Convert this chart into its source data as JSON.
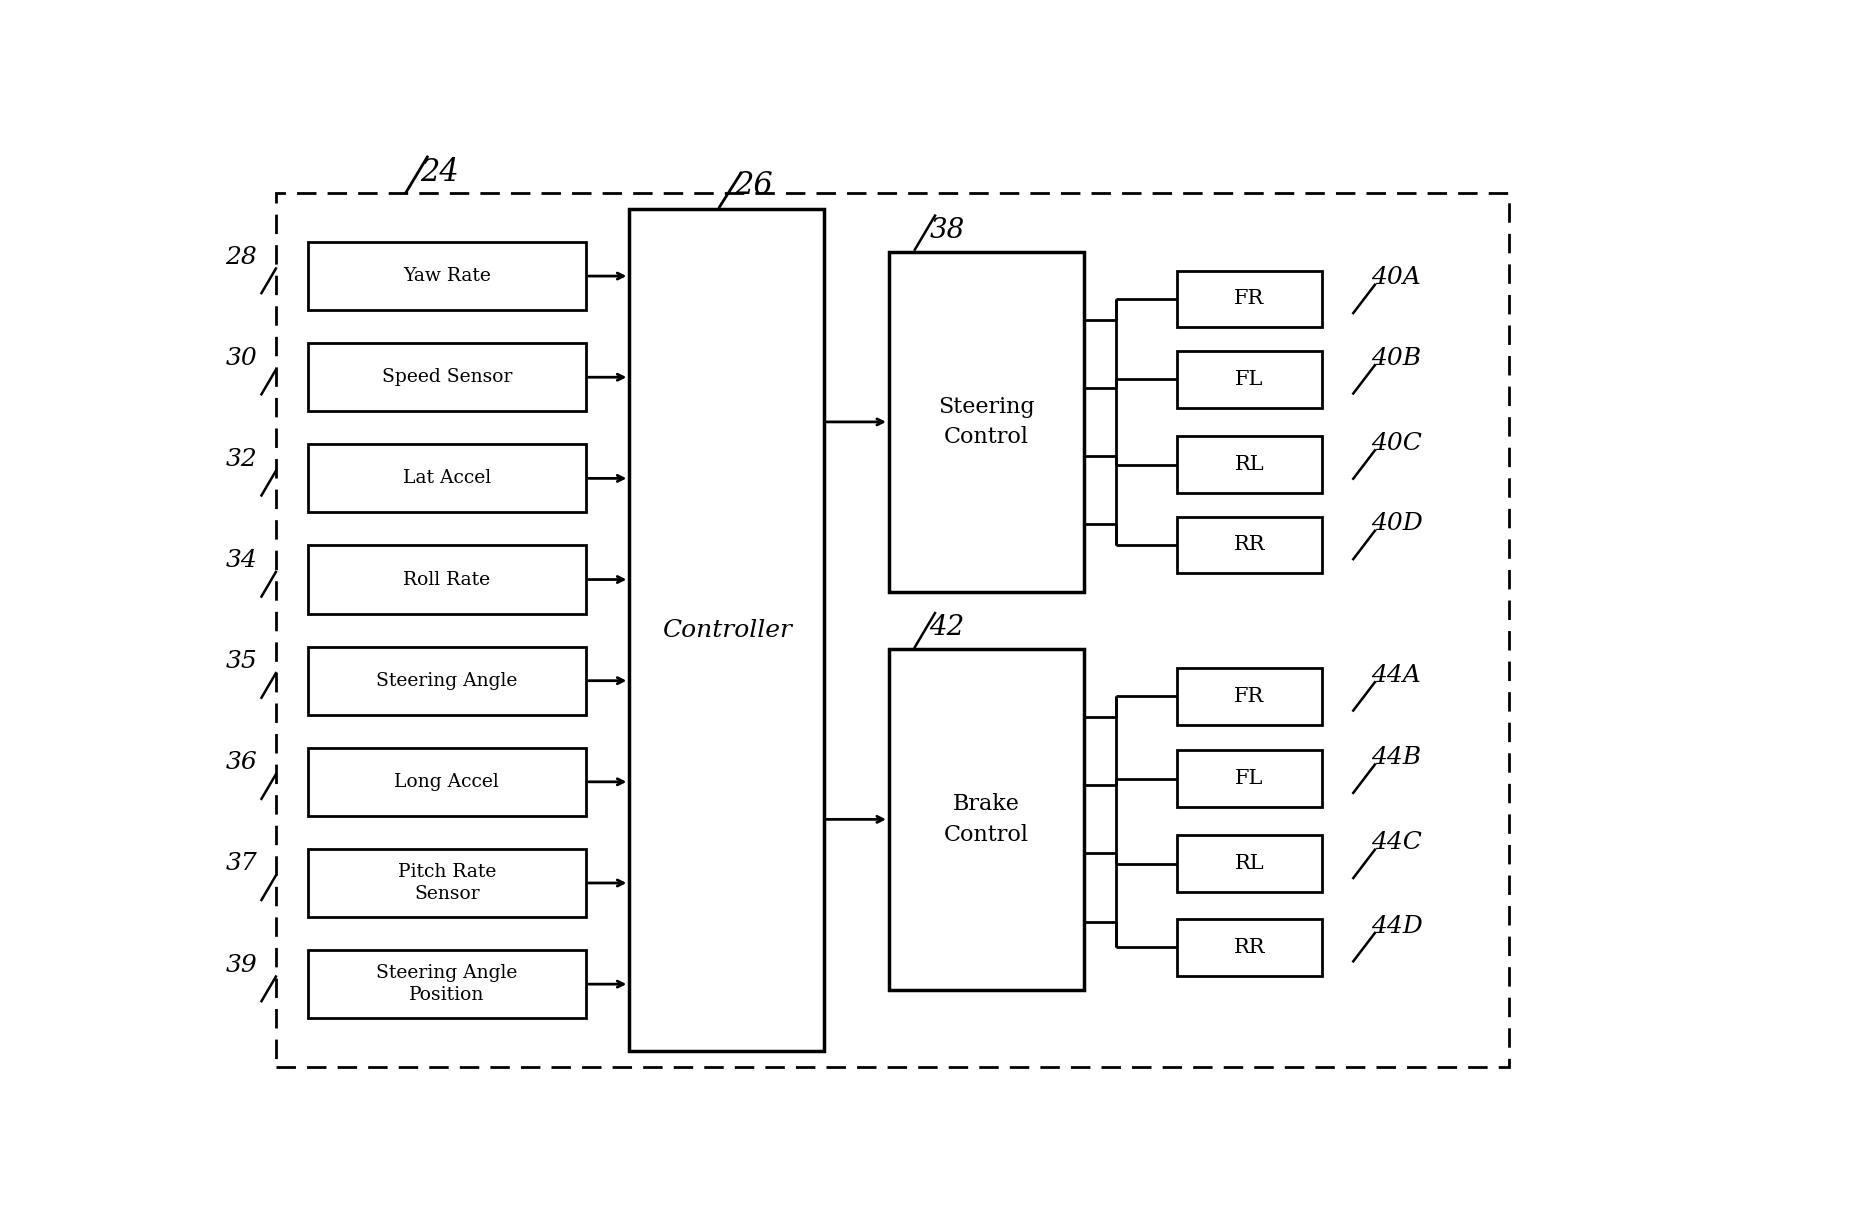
{
  "fig_width": 18.61,
  "fig_height": 12.29,
  "bg_color": "#ffffff",
  "box_color": "white",
  "box_edge": "black",
  "font_family": "DejaVu Serif",
  "sensors": [
    {
      "label": "Yaw Rate",
      "ref": "28",
      "multiline": false
    },
    {
      "label": "Speed Sensor",
      "ref": "30",
      "multiline": false
    },
    {
      "label": "Lat Accel",
      "ref": "32",
      "multiline": false
    },
    {
      "label": "Roll Rate",
      "ref": "34",
      "multiline": false
    },
    {
      "label": "Steering Angle",
      "ref": "35",
      "multiline": false
    },
    {
      "label": "Long Accel",
      "ref": "36",
      "multiline": false
    },
    {
      "label": "Pitch Rate\nSensor",
      "ref": "37",
      "multiline": true
    },
    {
      "label": "Steering Angle\nPosition",
      "ref": "39",
      "multiline": true
    }
  ],
  "controller_label": "Controller",
  "controller_ref": "26",
  "steering_label": "Steering\nControl",
  "steering_ref": "38",
  "brake_label": "Brake\nControl",
  "brake_ref": "42",
  "steering_outputs": [
    "FR",
    "FL",
    "RL",
    "RR"
  ],
  "steering_output_refs": [
    "40A",
    "40B",
    "40C",
    "40D"
  ],
  "brake_outputs": [
    "FR",
    "FL",
    "RL",
    "RR"
  ],
  "brake_output_refs": [
    "44A",
    "44B",
    "44C",
    "44D"
  ],
  "outer_box_ref": "24"
}
